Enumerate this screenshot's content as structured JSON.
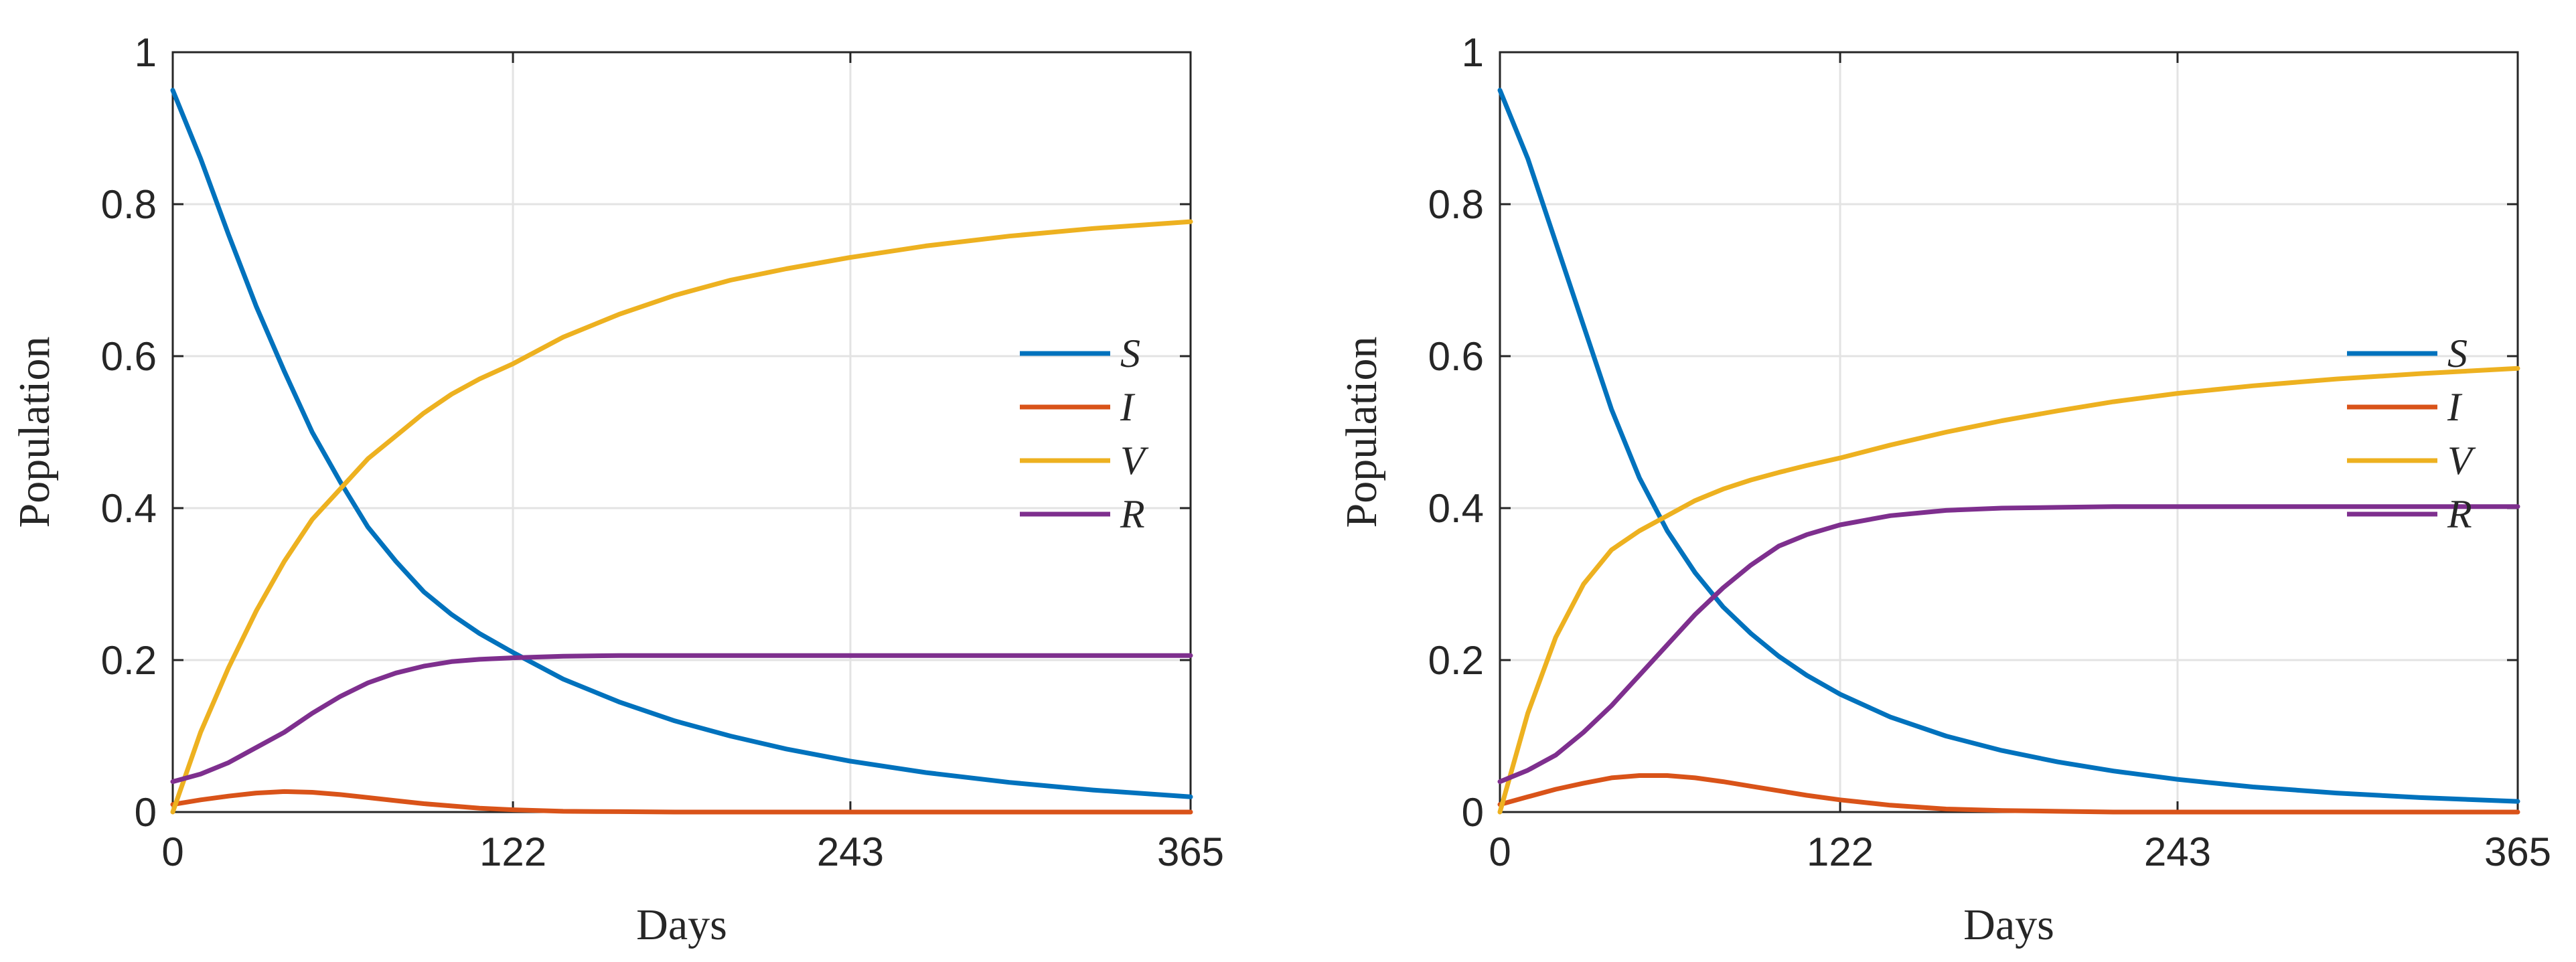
{
  "chart_data": [
    {
      "type": "line",
      "xlabel": "Days",
      "ylabel": "Population",
      "xlim": [
        0,
        365
      ],
      "ylim": [
        0,
        1
      ],
      "xticks": [
        0,
        122,
        243,
        365
      ],
      "xtick_labels": [
        "0",
        "122",
        "243",
        "365"
      ],
      "yticks": [
        0,
        0.2,
        0.4,
        0.6,
        0.8,
        1
      ],
      "ytick_labels": [
        "0",
        "0.2",
        "0.4",
        "0.6",
        "0.8",
        "1"
      ],
      "grid": true,
      "legend_position": "right-middle",
      "x": [
        0,
        10,
        20,
        30,
        40,
        50,
        60,
        70,
        80,
        90,
        100,
        110,
        122,
        140,
        160,
        180,
        200,
        220,
        243,
        270,
        300,
        330,
        365
      ],
      "series": [
        {
          "name": "S",
          "color": "#0072BD",
          "values": [
            0.95,
            0.86,
            0.76,
            0.665,
            0.58,
            0.5,
            0.435,
            0.375,
            0.33,
            0.29,
            0.26,
            0.235,
            0.21,
            0.175,
            0.145,
            0.12,
            0.1,
            0.083,
            0.067,
            0.052,
            0.039,
            0.029,
            0.02
          ]
        },
        {
          "name": "I",
          "color": "#D95319",
          "values": [
            0.01,
            0.016,
            0.021,
            0.025,
            0.027,
            0.026,
            0.023,
            0.019,
            0.015,
            0.011,
            0.008,
            0.005,
            0.003,
            0.001,
            0.0005,
            0,
            0,
            0,
            0,
            0,
            0,
            0,
            0
          ]
        },
        {
          "name": "V",
          "color": "#EDB120",
          "values": [
            0.0,
            0.105,
            0.19,
            0.265,
            0.33,
            0.385,
            0.425,
            0.465,
            0.495,
            0.525,
            0.55,
            0.57,
            0.59,
            0.625,
            0.655,
            0.68,
            0.7,
            0.715,
            0.73,
            0.745,
            0.758,
            0.768,
            0.777
          ]
        },
        {
          "name": "R",
          "color": "#7E2F8E",
          "values": [
            0.04,
            0.05,
            0.065,
            0.085,
            0.105,
            0.13,
            0.152,
            0.17,
            0.183,
            0.192,
            0.198,
            0.201,
            0.203,
            0.205,
            0.206,
            0.206,
            0.206,
            0.206,
            0.206,
            0.206,
            0.206,
            0.206,
            0.206
          ]
        }
      ]
    },
    {
      "type": "line",
      "xlabel": "Days",
      "ylabel": "Population",
      "xlim": [
        0,
        365
      ],
      "ylim": [
        0,
        1
      ],
      "xticks": [
        0,
        122,
        243,
        365
      ],
      "xtick_labels": [
        "0",
        "122",
        "243",
        "365"
      ],
      "yticks": [
        0,
        0.2,
        0.4,
        0.6,
        0.8,
        1
      ],
      "ytick_labels": [
        "0",
        "0.2",
        "0.4",
        "0.6",
        "0.8",
        "1"
      ],
      "grid": true,
      "legend_position": "right-middle",
      "x": [
        0,
        10,
        20,
        30,
        40,
        50,
        60,
        70,
        80,
        90,
        100,
        110,
        122,
        140,
        160,
        180,
        200,
        220,
        243,
        270,
        300,
        330,
        365
      ],
      "series": [
        {
          "name": "S",
          "color": "#0072BD",
          "values": [
            0.95,
            0.86,
            0.75,
            0.64,
            0.53,
            0.44,
            0.37,
            0.315,
            0.27,
            0.235,
            0.205,
            0.18,
            0.155,
            0.125,
            0.1,
            0.081,
            0.066,
            0.054,
            0.043,
            0.033,
            0.025,
            0.019,
            0.014
          ]
        },
        {
          "name": "I",
          "color": "#D95319",
          "values": [
            0.01,
            0.02,
            0.03,
            0.038,
            0.045,
            0.048,
            0.048,
            0.045,
            0.04,
            0.034,
            0.028,
            0.022,
            0.016,
            0.009,
            0.004,
            0.002,
            0.001,
            0,
            0,
            0,
            0,
            0,
            0
          ]
        },
        {
          "name": "V",
          "color": "#EDB120",
          "values": [
            0.0,
            0.13,
            0.23,
            0.3,
            0.345,
            0.37,
            0.39,
            0.41,
            0.425,
            0.437,
            0.447,
            0.456,
            0.466,
            0.483,
            0.5,
            0.515,
            0.528,
            0.54,
            0.551,
            0.561,
            0.57,
            0.577,
            0.584
          ]
        },
        {
          "name": "R",
          "color": "#7E2F8E",
          "values": [
            0.04,
            0.055,
            0.075,
            0.105,
            0.14,
            0.18,
            0.22,
            0.26,
            0.295,
            0.325,
            0.35,
            0.365,
            0.378,
            0.39,
            0.397,
            0.4,
            0.401,
            0.402,
            0.402,
            0.402,
            0.402,
            0.402,
            0.402
          ]
        }
      ]
    }
  ]
}
